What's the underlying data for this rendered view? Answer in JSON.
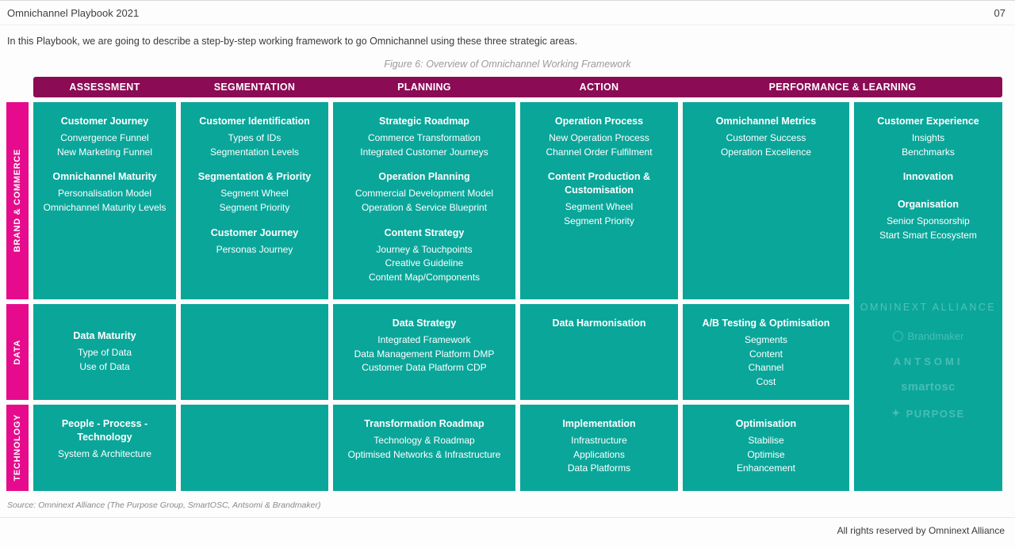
{
  "page": {
    "title": "Omnichannel Playbook 2021",
    "page_number": "07",
    "intro": "In this Playbook, we are going to describe a step-by-step working framework to go Omnichannel using these three strategic areas.",
    "figure_caption": "Figure 6: Overview of Omnichannel Working Framework",
    "source_note": "Source: Omninext Alliance (The Purpose Group, SmartOSC, Antsomi & Brandmaker)",
    "copyright": "All rights reserved by Omninext Alliance"
  },
  "colors": {
    "header_bar": "#8b0b55",
    "row_label_pink": "#e60b8d",
    "cell_teal": "#0aa69a",
    "watermark_text": "rgba(255,255,255,0.28)"
  },
  "framework": {
    "column_headers": [
      "ASSESSMENT",
      "SEGMENTATION",
      "PLANNING",
      "ACTION",
      "PERFORMANCE & LEARNING"
    ],
    "row_labels": [
      "BRAND & COMMERCE",
      "DATA",
      "TECHNOLOGY"
    ],
    "cells": {
      "brand_assessment": {
        "groups": [
          {
            "heading": "Customer Journey",
            "items": [
              "Convergence Funnel",
              "New Marketing Funnel"
            ]
          },
          {
            "heading": "Omnichannel Maturity",
            "items": [
              "Personalisation Model",
              "Omnichannel Maturity Levels"
            ]
          }
        ]
      },
      "brand_segmentation": {
        "groups": [
          {
            "heading": "Customer Identification",
            "items": [
              "Types of IDs",
              "Segmentation Levels"
            ]
          },
          {
            "heading": "Segmentation & Priority",
            "items": [
              "Segment Wheel",
              "Segment Priority"
            ]
          },
          {
            "heading": "Customer Journey",
            "items": [
              "Personas Journey"
            ]
          }
        ]
      },
      "brand_planning": {
        "groups": [
          {
            "heading": "Strategic Roadmap",
            "items": [
              "Commerce Transformation",
              "Integrated Customer Journeys"
            ]
          },
          {
            "heading": "Operation Planning",
            "items": [
              "Commercial Development Model",
              "Operation & Service Blueprint"
            ]
          },
          {
            "heading": "Content Strategy",
            "items": [
              "Journey & Touchpoints",
              "Creative Guideline",
              "Content Map/Components"
            ]
          }
        ]
      },
      "brand_action": {
        "groups": [
          {
            "heading": "Operation Process",
            "items": [
              "New Operation Process",
              "Channel Order Fulfilment"
            ]
          },
          {
            "heading": "Content Production & Customisation",
            "items": [
              "Segment Wheel",
              "Segment Priority"
            ]
          }
        ]
      },
      "brand_performance": {
        "groups": [
          {
            "heading": "Omnichannel Metrics",
            "items": [
              "Customer Success",
              "Operation Excellence"
            ]
          }
        ]
      },
      "data_assessment": {
        "groups": [
          {
            "heading": "Data Maturity",
            "items": [
              "Type of Data",
              "Use of Data"
            ]
          }
        ]
      },
      "data_planning": {
        "groups": [
          {
            "heading": "Data Strategy",
            "items": [
              "Integrated Framework",
              "Data Management Platform DMP",
              "Customer Data Platform CDP"
            ]
          }
        ]
      },
      "data_action": {
        "groups": [
          {
            "heading": "Data Harmonisation",
            "items": []
          }
        ]
      },
      "data_performance": {
        "groups": [
          {
            "heading": "A/B Testing & Optimisation",
            "items": [
              "Segments",
              "Content",
              "Channel",
              "Cost"
            ]
          }
        ]
      },
      "tech_assessment": {
        "groups": [
          {
            "heading": "People - Process - Technology",
            "items": [
              "System & Architecture"
            ]
          }
        ]
      },
      "tech_planning": {
        "groups": [
          {
            "heading": "Transformation Roadmap",
            "items": [
              "Technology & Roadmap",
              "Optimised Networks & Infrastructure"
            ]
          }
        ]
      },
      "tech_action": {
        "groups": [
          {
            "heading": "Implementation",
            "items": [
              "Infrastructure",
              "Applications",
              "Data Platforms"
            ]
          }
        ]
      },
      "tech_performance": {
        "groups": [
          {
            "heading": "Optimisation",
            "items": [
              "Stabilise",
              "Optimise",
              "Enhancement"
            ]
          }
        ]
      },
      "experience_column": {
        "groups": [
          {
            "heading": "Customer Experience",
            "items": [
              "Insights",
              "Benchmarks"
            ]
          },
          {
            "heading": "Innovation",
            "items": []
          },
          {
            "heading": "Organisation",
            "items": [
              "Senior Sponsorship",
              "Start Smart Ecosystem"
            ]
          }
        ]
      }
    }
  },
  "watermark": {
    "alliance_label": "OMNINEXT ALLIANCE",
    "brandmaker": "Brandmaker",
    "antsomi": "ANTSOMI",
    "smartosc": "smartosc",
    "purpose": "PURPOSE"
  }
}
